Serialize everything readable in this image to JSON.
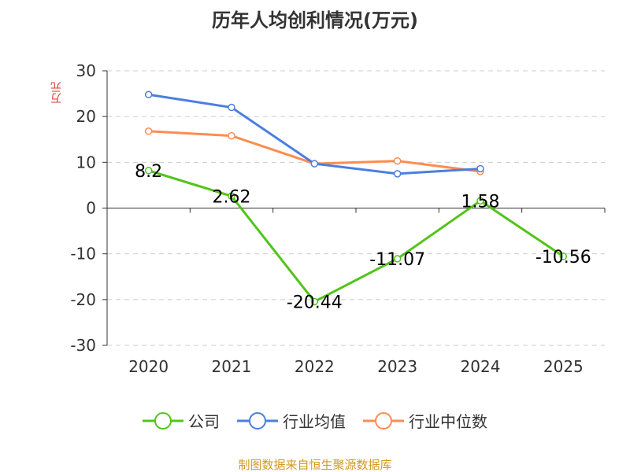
{
  "chart_data": {
    "type": "line",
    "title": "历年人均创利情况(万元)",
    "ylabel": "万元",
    "categories": [
      "2020",
      "2021",
      "2022",
      "2023",
      "2024",
      "2025"
    ],
    "ylim": [
      -30,
      30
    ],
    "yticks": [
      30,
      20,
      10,
      0,
      -10,
      -20,
      -30
    ],
    "grid": true,
    "legend_position": "bottom",
    "series": [
      {
        "name": "公司",
        "color": "#52c41a",
        "values": [
          8.2,
          2.62,
          -20.44,
          -11.07,
          1.58,
          -10.56
        ],
        "labels": [
          "8.2",
          "2.62",
          "-20.44",
          "-11.07",
          "1.58",
          "-10.56"
        ]
      },
      {
        "name": "行业均值",
        "color": "#4a7fe0",
        "values": [
          24.8,
          22.0,
          9.7,
          7.5,
          8.6,
          null
        ]
      },
      {
        "name": "行业中位数",
        "color": "#ff8c50",
        "values": [
          16.8,
          15.8,
          9.7,
          10.3,
          8.0,
          null
        ]
      }
    ]
  },
  "source": "制图数据来自恒生聚源数据库"
}
